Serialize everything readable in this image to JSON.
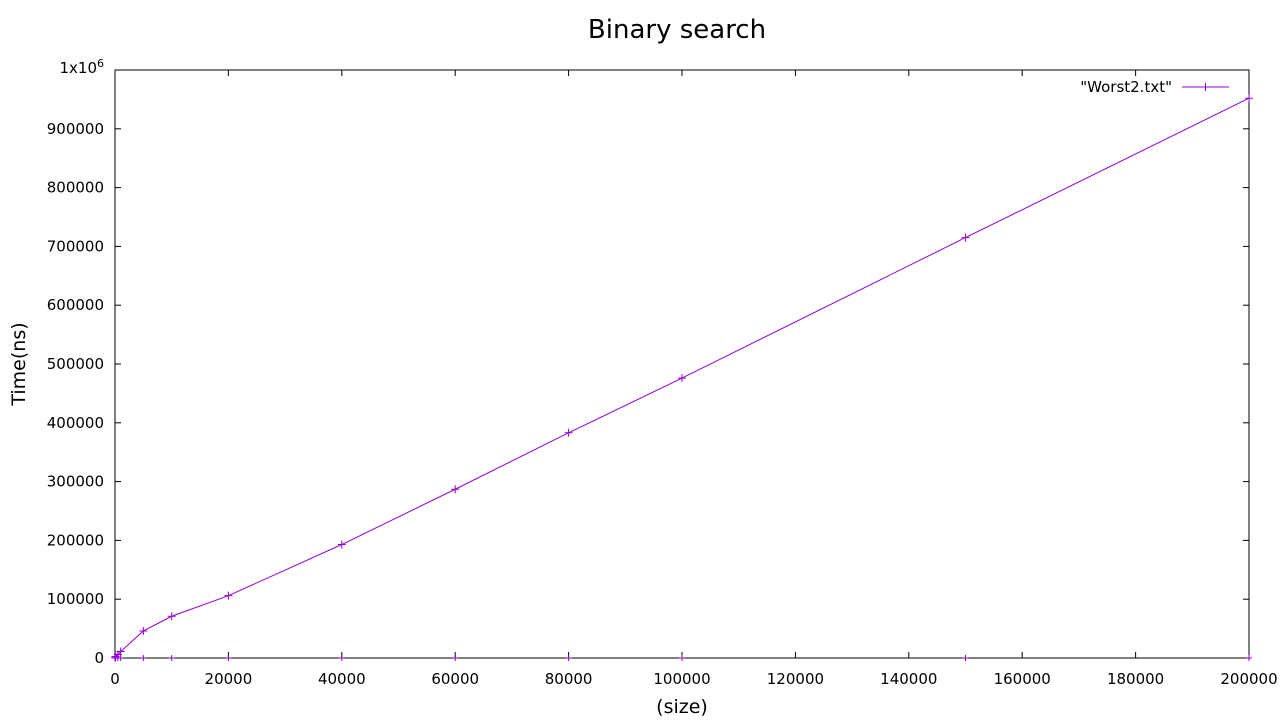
{
  "chart_data": {
    "type": "line",
    "title": "Binary search",
    "xlabel": "(size)",
    "ylabel": "Time(ns)",
    "xlim": [
      0,
      200000
    ],
    "ylim": [
      0,
      1000000
    ],
    "x_ticks": [
      0,
      20000,
      40000,
      60000,
      80000,
      100000,
      120000,
      140000,
      160000,
      180000,
      200000
    ],
    "x_tick_labels": [
      "0",
      "20000",
      "40000",
      "60000",
      "80000",
      "100000",
      "120000",
      "140000",
      "160000",
      "180000",
      "200000"
    ],
    "y_ticks": [
      0,
      100000,
      200000,
      300000,
      400000,
      500000,
      600000,
      700000,
      800000,
      900000,
      1000000
    ],
    "y_tick_labels": [
      "0",
      "100000",
      "200000",
      "300000",
      "400000",
      "500000",
      "600000",
      "700000",
      "800000",
      "900000",
      "1x10^6"
    ],
    "grid": false,
    "legend_position": "top-right",
    "series": [
      {
        "name": "\"Worst2.txt\"",
        "color": "#9400d3",
        "marker": "plus",
        "x": [
          10,
          100,
          500,
          1000,
          5000,
          10000,
          20000,
          40000,
          60000,
          80000,
          100000,
          150000,
          200000
        ],
        "y": [
          500,
          2500,
          6000,
          11000,
          46000,
          71000,
          106000,
          193000,
          287000,
          383000,
          476000,
          715000,
          952000
        ]
      }
    ],
    "baseline_markers": {
      "color": "#9400d3",
      "marker": "plus",
      "x": [
        10,
        100,
        500,
        1000,
        5000,
        10000,
        20000,
        40000,
        60000,
        80000,
        100000,
        150000,
        200000
      ],
      "y": [
        0,
        0,
        0,
        0,
        0,
        0,
        0,
        0,
        0,
        0,
        0,
        0,
        0
      ]
    }
  }
}
